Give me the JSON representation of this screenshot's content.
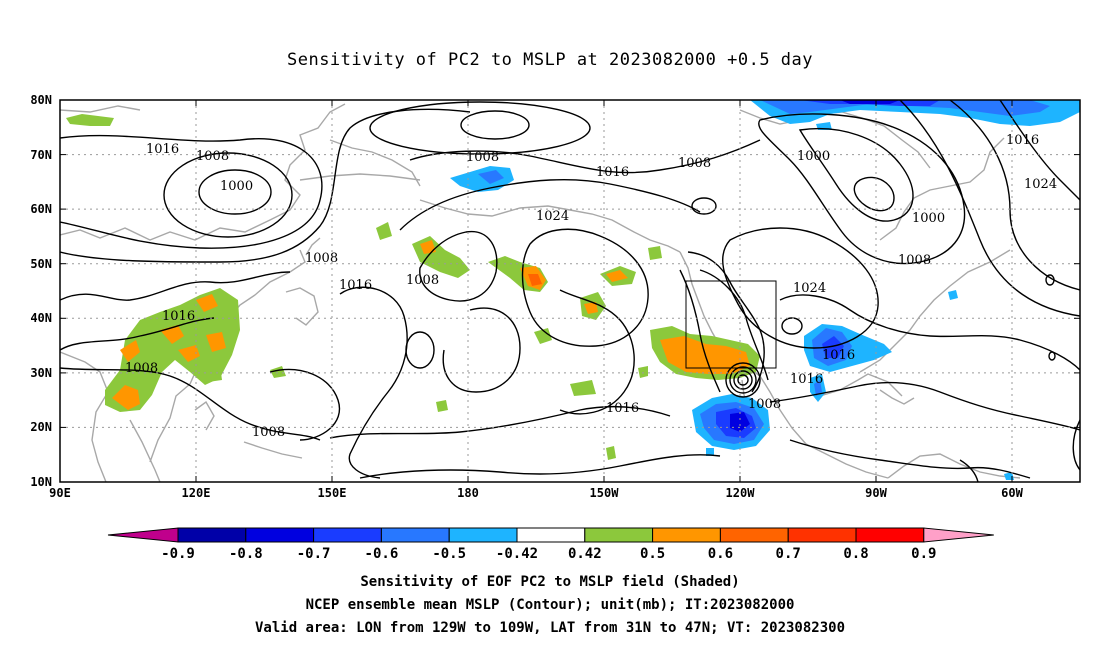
{
  "title": "Sensitivity of PC2 to MSLP at 2023082000 +0.5 day",
  "lat_labels": [
    "80N",
    "70N",
    "60N",
    "50N",
    "40N",
    "30N",
    "20N",
    "10N"
  ],
  "lon_labels": [
    "90E",
    "120E",
    "150E",
    "180",
    "150W",
    "120W",
    "90W",
    "60W"
  ],
  "contour_labels": [
    {
      "text": "1016"
    },
    {
      "text": "1008"
    },
    {
      "text": "1000"
    },
    {
      "text": "1008"
    },
    {
      "text": "1008"
    },
    {
      "text": "1016"
    },
    {
      "text": "1024"
    },
    {
      "text": "1016"
    },
    {
      "text": "1008"
    },
    {
      "text": "1000"
    },
    {
      "text": "1016"
    },
    {
      "text": "1024"
    },
    {
      "text": "1000"
    },
    {
      "text": "1008"
    },
    {
      "text": "1008"
    },
    {
      "text": "1016"
    },
    {
      "text": "1008"
    },
    {
      "text": "1008"
    },
    {
      "text": "1008"
    },
    {
      "text": "1024"
    },
    {
      "text": "1016"
    },
    {
      "text": "1016"
    },
    {
      "text": "1008"
    },
    {
      "text": "1016"
    }
  ],
  "colorbar": {
    "labels": [
      "-0.9",
      "-0.8",
      "-0.7",
      "-0.6",
      "-0.5",
      "-0.42",
      "0.42",
      "0.5",
      "0.6",
      "0.7",
      "0.8",
      "0.9"
    ],
    "colors": [
      "#0000a8",
      "#0000e0",
      "#1a3cff",
      "#2878ff",
      "#1eb4ff",
      "#ffffff",
      "#8cc83c",
      "#ff9600",
      "#ff6400",
      "#ff3200",
      "#ff0000"
    ],
    "low_end_color": "#c0008c",
    "high_end_color": "#ffa0c8"
  },
  "caption": {
    "line1": "Sensitivity of EOF PC2 to MSLP field (Shaded)",
    "line2": "NCEP ensemble mean MSLP (Contour); unit(mb); IT:2023082000",
    "line3": "Valid area: LON from 129W to 109W, LAT from 31N to 47N; VT: 2023082300"
  }
}
